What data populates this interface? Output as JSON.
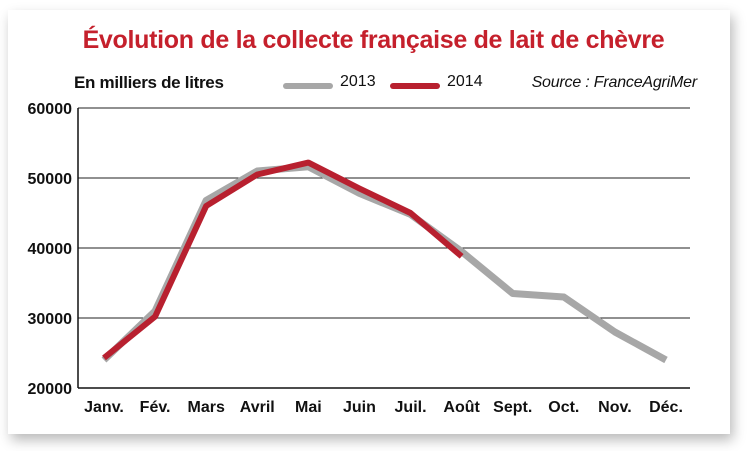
{
  "title": "Évolution de la collecte française de lait de chèvre",
  "unit_label": "En milliers de litres",
  "source": "Source : FranceAgriMer",
  "chart_data": {
    "type": "line",
    "title": "Évolution de la collecte française de lait de chèvre",
    "ylabel": "En milliers de litres",
    "categories": [
      "Janv.",
      "Fév.",
      "Mars",
      "Avril",
      "Mai",
      "Juin",
      "Juil.",
      "Août",
      "Sept.",
      "Oct.",
      "Nov.",
      "Déc."
    ],
    "ylim": [
      20000,
      60000
    ],
    "yticks": [
      "60000",
      "50000",
      "40000",
      "30000",
      "20000"
    ],
    "grid": true,
    "legend_position": "top",
    "series": [
      {
        "name": "2013",
        "color": "#a7a7a7",
        "values": [
          24000,
          31000,
          46800,
          51000,
          51600,
          47800,
          44800,
          39500,
          33500,
          33000,
          28000,
          24000
        ]
      },
      {
        "name": "2014",
        "color": "#b8202f",
        "values": [
          24300,
          30200,
          46000,
          50500,
          52200,
          48500,
          45000,
          38800,
          null,
          null,
          null,
          null
        ]
      }
    ]
  }
}
